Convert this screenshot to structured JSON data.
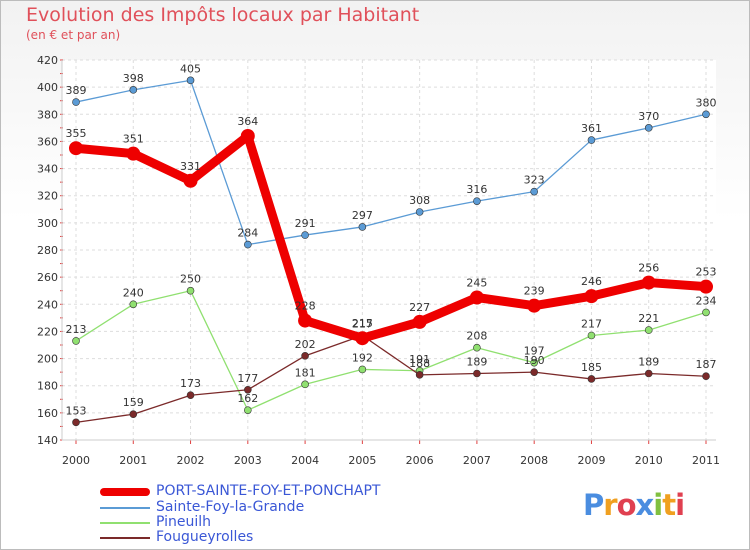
{
  "title": "Evolution des Impôts locaux par Habitant",
  "subtitle": "(en € et par an)",
  "logo": {
    "parts": [
      "P",
      "r",
      "o",
      "x",
      "i",
      "t",
      "i"
    ],
    "colors": [
      "#4a8de0",
      "#f0a020",
      "#e04050",
      "#4a8de0",
      "#80c040",
      "#f0a020",
      "#e04050"
    ]
  },
  "chart_data": {
    "type": "line",
    "x": [
      "2000",
      "2001",
      "2002",
      "2003",
      "2004",
      "2005",
      "2006",
      "2007",
      "2008",
      "2009",
      "2010",
      "2011"
    ],
    "ylim": [
      140,
      420
    ],
    "yticks": [
      "140",
      "160",
      "180",
      "200",
      "220",
      "240",
      "260",
      "280",
      "300",
      "320",
      "340",
      "360",
      "380",
      "400",
      "420"
    ],
    "grid": true,
    "series": [
      {
        "name": "Sainte-Foy-la-Grande",
        "color": "#5b9bd5",
        "values": [
          389,
          398,
          405,
          284,
          291,
          297,
          308,
          316,
          323,
          361,
          370,
          380
        ],
        "labels": [
          "389",
          "398",
          "405",
          "284",
          "291",
          "297",
          "308",
          "316",
          "323",
          "361",
          "370",
          "380"
        ]
      },
      {
        "name": "Pineuilh",
        "color": "#90e070",
        "values": [
          213,
          240,
          250,
          162,
          181,
          192,
          191,
          208,
          197,
          217,
          221,
          234
        ],
        "labels": [
          "213",
          "240",
          "250",
          "162",
          "181",
          "192",
          "191",
          "208",
          "197",
          "217",
          "221",
          "234"
        ]
      },
      {
        "name": "Fougueyrolles",
        "color": "#7b2a2a",
        "values": [
          153,
          159,
          173,
          177,
          202,
          217,
          188,
          189,
          190,
          185,
          189,
          187
        ],
        "labels": [
          "153",
          "159",
          "173",
          "177",
          "202",
          "217",
          "188",
          "189",
          "190",
          "185",
          "189",
          "187"
        ]
      },
      {
        "name": "PORT-SAINTE-FOY-ET-PONCHAPT",
        "color": "#ee0000",
        "values": [
          355,
          351,
          331,
          364,
          228,
          215,
          227,
          245,
          239,
          246,
          256,
          253
        ],
        "labels": [
          "355",
          "351",
          "331",
          "364",
          "228",
          "215",
          "227",
          "245",
          "239",
          "246",
          "256",
          "253"
        ]
      }
    ],
    "legend": [
      "PORT-SAINTE-FOY-ET-PONCHAPT",
      "Sainte-Foy-la-Grande",
      "Pineuilh",
      "Fougueyrolles"
    ]
  }
}
